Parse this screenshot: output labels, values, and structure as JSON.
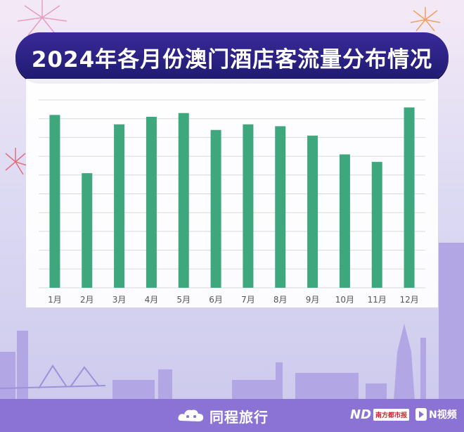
{
  "title": "2024年各月份澳门酒店客流量分布情况",
  "chart_data": {
    "type": "bar",
    "categories": [
      "1月",
      "2月",
      "3月",
      "4月",
      "5月",
      "6月",
      "7月",
      "8月",
      "9月",
      "10月",
      "11月",
      "12月"
    ],
    "values": [
      92,
      61,
      87,
      91,
      93,
      84,
      87,
      86,
      81,
      71,
      67,
      96
    ],
    "title": "2024年各月份澳门酒店客流量分布情况",
    "xlabel": "",
    "ylabel": "",
    "ylim": [
      0,
      100
    ],
    "grid": true,
    "legend": "none",
    "bar_color": "#3fa77d"
  },
  "colors": {
    "title_banner": "#24207a",
    "footer": "#8b73d6",
    "bar": "#3fa77d",
    "grid": "#d9d9d9"
  },
  "footer": {
    "brand": "同程旅行",
    "partner_1_mark": "ND",
    "partner_1_name": "南方都市报",
    "partner_2_name": "N视频"
  },
  "icons": [
    "firework-icon",
    "cloud-logo-icon",
    "nvideo-play-icon"
  ]
}
